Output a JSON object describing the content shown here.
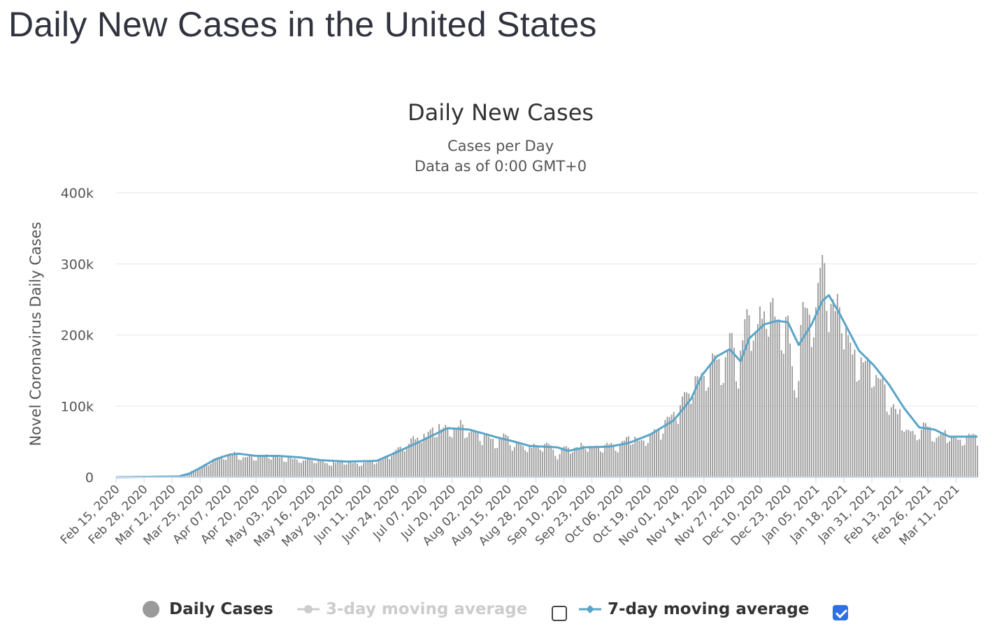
{
  "page": {
    "title": "Daily New Cases in the United States"
  },
  "colors": {
    "bars": "#9a9a9a",
    "ma7": "#5aa5c8",
    "ma3_disabled": "#cccccc",
    "grid": "#e6e6e6",
    "checked": "#2f6fe4"
  },
  "legend": {
    "daily": {
      "label": "Daily Cases",
      "icon": "circle-dot-icon"
    },
    "ma3": {
      "label": "3-day moving average",
      "icon": "line-dot-icon",
      "enabled": false
    },
    "ma7": {
      "label": "7-day moving average",
      "icon": "line-diamond-icon",
      "enabled": true
    }
  },
  "chart_data": {
    "type": "bar",
    "title": "Daily New Cases",
    "subtitle": "Cases per Day",
    "subtitle2": "Data as of 0:00 GMT+0",
    "ylabel": "Novel Coronavirus Daily Cases",
    "xlabel": "",
    "ylim": [
      0,
      400000
    ],
    "y_ticks": [
      0,
      100000,
      200000,
      300000,
      400000
    ],
    "y_tick_labels": [
      "0",
      "100k",
      "200k",
      "300k",
      "400k"
    ],
    "x_start": "2020-02-15",
    "x_end": "2021-03-21",
    "x_ticks": [
      "Feb 15, 2020",
      "Feb 28, 2020",
      "Mar 12, 2020",
      "Mar 25, 2020",
      "Apr 07, 2020",
      "Apr 20, 2020",
      "May 03, 2020",
      "May 16, 2020",
      "May 29, 2020",
      "Jun 11, 2020",
      "Jun 24, 2020",
      "Jul 07, 2020",
      "Jul 20, 2020",
      "Aug 02, 2020",
      "Aug 15, 2020",
      "Aug 28, 2020",
      "Sep 10, 2020",
      "Sep 23, 2020",
      "Oct 06, 2020",
      "Oct 19, 2020",
      "Nov 01, 2020",
      "Nov 14, 2020",
      "Nov 27, 2020",
      "Dec 10, 2020",
      "Dec 23, 2020",
      "Jan 05, 2021",
      "Jan 18, 2021",
      "Jan 31, 2021",
      "Feb 13, 2021",
      "Feb 26, 2021",
      "Mar 11, 2021"
    ],
    "grid": true,
    "legend_position": "bottom",
    "series": [
      {
        "name": "Daily Cases",
        "type": "bar",
        "points": [
          [
            "2020-02-15",
            0
          ],
          [
            "2020-02-28",
            0
          ],
          [
            "2020-03-10",
            500
          ],
          [
            "2020-03-15",
            2000
          ],
          [
            "2020-03-20",
            7000
          ],
          [
            "2020-03-25",
            14000
          ],
          [
            "2020-03-28",
            19000
          ],
          [
            "2020-04-01",
            26000
          ],
          [
            "2020-04-04",
            32000
          ],
          [
            "2020-04-07",
            31000
          ],
          [
            "2020-04-10",
            34000
          ],
          [
            "2020-04-14",
            29000
          ],
          [
            "2020-04-18",
            31000
          ],
          [
            "2020-04-21",
            30000
          ],
          [
            "2020-04-25",
            33000
          ],
          [
            "2020-04-29",
            30000
          ],
          [
            "2020-05-03",
            28000
          ],
          [
            "2020-05-08",
            27000
          ],
          [
            "2020-05-12",
            24000
          ],
          [
            "2020-05-16",
            25000
          ],
          [
            "2020-05-20",
            22000
          ],
          [
            "2020-05-25",
            20000
          ],
          [
            "2020-05-29",
            23000
          ],
          [
            "2020-06-03",
            21000
          ],
          [
            "2020-06-08",
            20000
          ],
          [
            "2020-06-12",
            22000
          ],
          [
            "2020-06-16",
            24000
          ],
          [
            "2020-06-20",
            30000
          ],
          [
            "2020-06-24",
            39000
          ],
          [
            "2020-06-28",
            44000
          ],
          [
            "2020-07-02",
            55000
          ],
          [
            "2020-07-07",
            58000
          ],
          [
            "2020-07-11",
            66000
          ],
          [
            "2020-07-16",
            74000
          ],
          [
            "2020-07-20",
            64000
          ],
          [
            "2020-07-24",
            76000
          ],
          [
            "2020-07-28",
            66000
          ],
          [
            "2020-08-01",
            62000
          ],
          [
            "2020-08-05",
            56000
          ],
          [
            "2020-08-10",
            51000
          ],
          [
            "2020-08-14",
            60000
          ],
          [
            "2020-08-18",
            45000
          ],
          [
            "2020-08-22",
            46000
          ],
          [
            "2020-08-26",
            44000
          ],
          [
            "2020-08-30",
            45000
          ],
          [
            "2020-09-03",
            49000
          ],
          [
            "2020-09-07",
            30000
          ],
          [
            "2020-09-11",
            44000
          ],
          [
            "2020-09-15",
            40000
          ],
          [
            "2020-09-19",
            47000
          ],
          [
            "2020-09-23",
            42000
          ],
          [
            "2020-09-27",
            44000
          ],
          [
            "2020-10-01",
            47000
          ],
          [
            "2020-10-05",
            43000
          ],
          [
            "2020-10-09",
            57000
          ],
          [
            "2020-10-14",
            55000
          ],
          [
            "2020-10-18",
            52000
          ],
          [
            "2020-10-22",
            65000
          ],
          [
            "2020-10-26",
            70000
          ],
          [
            "2020-10-30",
            92000
          ],
          [
            "2020-11-03",
            100000
          ],
          [
            "2020-11-07",
            126000
          ],
          [
            "2020-11-11",
            144000
          ],
          [
            "2020-11-15",
            148000
          ],
          [
            "2020-11-19",
            173000
          ],
          [
            "2020-11-23",
            165000
          ],
          [
            "2020-11-27",
            202000
          ],
          [
            "2020-11-30",
            155000
          ],
          [
            "2020-12-04",
            229000
          ],
          [
            "2020-12-08",
            216000
          ],
          [
            "2020-12-12",
            240000
          ],
          [
            "2020-12-16",
            245000
          ],
          [
            "2020-12-20",
            205000
          ],
          [
            "2020-12-23",
            230000
          ],
          [
            "2020-12-26",
            115000
          ],
          [
            "2020-12-30",
            233000
          ],
          [
            "2021-01-02",
            220000
          ],
          [
            "2021-01-05",
            245000
          ],
          [
            "2021-01-08",
            306000
          ],
          [
            "2021-01-12",
            235000
          ],
          [
            "2021-01-16",
            245000
          ],
          [
            "2021-01-20",
            190000
          ],
          [
            "2021-01-24",
            165000
          ],
          [
            "2021-01-28",
            170000
          ],
          [
            "2021-02-01",
            150000
          ],
          [
            "2021-02-05",
            135000
          ],
          [
            "2021-02-09",
            100000
          ],
          [
            "2021-02-13",
            92000
          ],
          [
            "2021-02-17",
            63000
          ],
          [
            "2021-02-21",
            60000
          ],
          [
            "2021-02-25",
            77000
          ],
          [
            "2021-03-01",
            57000
          ],
          [
            "2021-03-05",
            66000
          ],
          [
            "2021-03-09",
            55000
          ],
          [
            "2021-03-13",
            55000
          ],
          [
            "2021-03-17",
            60000
          ],
          [
            "2021-03-21",
            57000
          ]
        ]
      },
      {
        "name": "7-day moving average",
        "type": "line",
        "points": [
          [
            "2020-02-15",
            0
          ],
          [
            "2020-03-15",
            1000
          ],
          [
            "2020-03-20",
            5000
          ],
          [
            "2020-03-25",
            13000
          ],
          [
            "2020-04-01",
            25000
          ],
          [
            "2020-04-08",
            32000
          ],
          [
            "2020-04-12",
            33000
          ],
          [
            "2020-04-20",
            30000
          ],
          [
            "2020-04-30",
            30000
          ],
          [
            "2020-05-10",
            28000
          ],
          [
            "2020-05-20",
            24000
          ],
          [
            "2020-06-01",
            22000
          ],
          [
            "2020-06-15",
            23000
          ],
          [
            "2020-06-25",
            36000
          ],
          [
            "2020-07-05",
            50000
          ],
          [
            "2020-07-18",
            69000
          ],
          [
            "2020-07-28",
            67000
          ],
          [
            "2020-08-10",
            56000
          ],
          [
            "2020-08-18",
            50000
          ],
          [
            "2020-08-25",
            44000
          ],
          [
            "2020-09-07",
            42000
          ],
          [
            "2020-09-12",
            37000
          ],
          [
            "2020-09-20",
            42000
          ],
          [
            "2020-10-01",
            43000
          ],
          [
            "2020-10-10",
            48000
          ],
          [
            "2020-10-20",
            60000
          ],
          [
            "2020-10-31",
            80000
          ],
          [
            "2020-11-08",
            110000
          ],
          [
            "2020-11-13",
            143000
          ],
          [
            "2020-11-20",
            170000
          ],
          [
            "2020-11-26",
            180000
          ],
          [
            "2020-12-01",
            163000
          ],
          [
            "2020-12-05",
            195000
          ],
          [
            "2020-12-12",
            215000
          ],
          [
            "2020-12-18",
            220000
          ],
          [
            "2020-12-23",
            218000
          ],
          [
            "2020-12-28",
            186000
          ],
          [
            "2021-01-03",
            215000
          ],
          [
            "2021-01-08",
            248000
          ],
          [
            "2021-01-11",
            256000
          ],
          [
            "2021-01-16",
            230000
          ],
          [
            "2021-01-25",
            178000
          ],
          [
            "2021-02-01",
            157000
          ],
          [
            "2021-02-08",
            130000
          ],
          [
            "2021-02-15",
            97000
          ],
          [
            "2021-02-22",
            70000
          ],
          [
            "2021-03-01",
            67000
          ],
          [
            "2021-03-08",
            57000
          ],
          [
            "2021-03-21",
            57000
          ]
        ]
      }
    ]
  }
}
